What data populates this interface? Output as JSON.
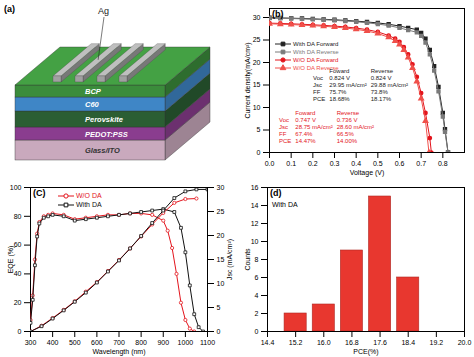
{
  "diagram": {
    "label": "(a)",
    "layers": [
      {
        "name": "Glass/ITO",
        "color": "#c9a9bd"
      },
      {
        "name": "PEDOT:PSS",
        "color": "#8a3d8f"
      },
      {
        "name": "Perovskite",
        "color": "#2b5e33"
      },
      {
        "name": "C60",
        "color": "#3f86c6"
      },
      {
        "name": "BCP",
        "color": "#3b8c3b"
      }
    ],
    "electrode": {
      "name": "Ag",
      "color": "#a0a0a0",
      "fingers": 4
    }
  },
  "chart_data": [
    {
      "type": "line",
      "title": "(b)",
      "x_label": "Voltage (V)",
      "y_label": "Current density(mA/cm²)",
      "xlim": [
        0,
        0.9
      ],
      "xticks": [
        {
          "value": 0,
          "label": "0.0"
        },
        0.1,
        0.2,
        0.3,
        0.4,
        0.5,
        0.6,
        0.7,
        0.8
      ],
      "ylim": [
        0,
        32
      ],
      "yticks": [
        0,
        5,
        10,
        15,
        20,
        25,
        30
      ],
      "legend": "top-left",
      "series": [
        {
          "name": "With DA Forward",
          "color": "#222222",
          "marker": "square",
          "x": [
            0,
            0.05,
            0.1,
            0.15,
            0.2,
            0.25,
            0.3,
            0.35,
            0.4,
            0.45,
            0.5,
            0.55,
            0.6,
            0.64,
            0.68,
            0.7,
            0.72,
            0.74,
            0.76,
            0.78,
            0.8,
            0.81,
            0.824
          ],
          "values": [
            29.95,
            29.9,
            29.85,
            29.78,
            29.7,
            29.6,
            29.5,
            29.35,
            29.2,
            29.0,
            28.8,
            28.5,
            28.1,
            27.7,
            27.3,
            26.6,
            25.3,
            22.8,
            19.2,
            14.6,
            8.8,
            5.2,
            0
          ]
        },
        {
          "name": "With DA Reverse",
          "color": "#7a7a7a",
          "marker": "square",
          "x": [
            0,
            0.05,
            0.1,
            0.15,
            0.2,
            0.25,
            0.3,
            0.35,
            0.4,
            0.45,
            0.5,
            0.55,
            0.6,
            0.64,
            0.68,
            0.7,
            0.72,
            0.74,
            0.76,
            0.78,
            0.8,
            0.81,
            0.824
          ],
          "values": [
            29.88,
            29.83,
            29.77,
            29.7,
            29.6,
            29.5,
            29.38,
            29.22,
            29.05,
            28.82,
            28.55,
            28.2,
            27.7,
            27.2,
            26.7,
            25.9,
            24.4,
            21.8,
            18.2,
            13.6,
            8.0,
            4.6,
            0
          ]
        },
        {
          "name": "W/O DA Forward",
          "color": "#e3141c",
          "marker": "circle",
          "x": [
            0,
            0.05,
            0.1,
            0.15,
            0.2,
            0.25,
            0.3,
            0.35,
            0.4,
            0.45,
            0.5,
            0.55,
            0.58,
            0.6,
            0.62,
            0.64,
            0.66,
            0.68,
            0.7,
            0.72,
            0.74,
            0.747
          ],
          "values": [
            28.75,
            28.68,
            28.6,
            28.5,
            28.38,
            28.25,
            28.1,
            27.9,
            27.65,
            27.3,
            26.8,
            26.0,
            25.3,
            24.6,
            23.4,
            21.8,
            19.6,
            16.8,
            13.2,
            8.8,
            3.2,
            0
          ]
        },
        {
          "name": "W/O DA Reverse",
          "color": "#f0504a",
          "marker": "triangle",
          "x": [
            0,
            0.05,
            0.1,
            0.15,
            0.2,
            0.25,
            0.3,
            0.35,
            0.4,
            0.45,
            0.5,
            0.55,
            0.58,
            0.6,
            0.62,
            0.64,
            0.66,
            0.68,
            0.7,
            0.72,
            0.736
          ],
          "values": [
            28.6,
            28.52,
            28.43,
            28.32,
            28.2,
            28.05,
            27.88,
            27.66,
            27.38,
            27.0,
            26.45,
            25.6,
            24.8,
            24.0,
            22.8,
            21.1,
            18.8,
            15.8,
            12.0,
            7.0,
            0
          ]
        }
      ],
      "annotations": [
        {
          "color": "#222222",
          "header": [
            "",
            "Foward",
            "Reverse"
          ],
          "rows": [
            [
              "Voc",
              "0.824 V",
              "0.824 V"
            ],
            [
              "Jsc",
              "29.95 mA/cm²",
              "29.88 mA/cm²"
            ],
            [
              "FF",
              "75.7%",
              "73.8%"
            ],
            [
              "PCE",
              "18.68%",
              "18.17%"
            ]
          ]
        },
        {
          "color": "#e3141c",
          "header": [
            "",
            "Foward",
            "Reverse"
          ],
          "rows": [
            [
              "Voc",
              "0.747 V",
              "0.736 V"
            ],
            [
              "Jsc",
              "28.75 mA/cm²",
              "28.60 mA/cm²"
            ],
            [
              "FF",
              "67.4%",
              "66.5%"
            ],
            [
              "PCE",
              "14.47%",
              "14.00%"
            ]
          ]
        }
      ]
    },
    {
      "type": "line",
      "title": "(C)",
      "x_label": "Wavelength (nm)",
      "y_label": "EQE (%)",
      "y2_label": "Jsc (mA/cm²)",
      "xlim": [
        300,
        1100
      ],
      "xticks": [
        300,
        400,
        500,
        600,
        700,
        800,
        900,
        1000,
        1100
      ],
      "ylim": [
        0,
        100
      ],
      "yticks": [
        0,
        20,
        40,
        60,
        80,
        100
      ],
      "y2lim": [
        0,
        30
      ],
      "y2ticks": [
        0,
        5,
        10,
        15,
        20,
        25,
        30
      ],
      "legend": "top-left",
      "series": [
        {
          "name": "W/O DA",
          "color": "#e3141c",
          "marker": "circle",
          "x": [
            300,
            310,
            320,
            330,
            340,
            360,
            380,
            400,
            450,
            500,
            550,
            600,
            650,
            700,
            750,
            800,
            850,
            900,
            920,
            940,
            960,
            980,
            1000,
            1020,
            1040
          ],
          "values": [
            8,
            25,
            50,
            68,
            76,
            80,
            81,
            82,
            81,
            78,
            79,
            80,
            81,
            81,
            82,
            82,
            81,
            77,
            70,
            58,
            40,
            20,
            8,
            2,
            0
          ]
        },
        {
          "name": "With DA",
          "color": "#111111",
          "marker": "square",
          "x": [
            300,
            310,
            320,
            330,
            340,
            360,
            380,
            400,
            450,
            500,
            550,
            600,
            650,
            700,
            750,
            800,
            850,
            900,
            950,
            980,
            1000,
            1020,
            1040,
            1060,
            1080
          ],
          "values": [
            6,
            22,
            46,
            66,
            75,
            79,
            80,
            81,
            80,
            77,
            78,
            79,
            80,
            81,
            82,
            83,
            84,
            85,
            83,
            72,
            55,
            32,
            12,
            3,
            0
          ]
        },
        {
          "name": "W/O DA",
          "color": "#e3141c",
          "marker": "circle",
          "axis": "y2",
          "x": [
            300,
            350,
            400,
            450,
            500,
            550,
            600,
            650,
            700,
            750,
            800,
            850,
            900,
            950,
            1000,
            1050
          ],
          "values": [
            0,
            1.2,
            2.8,
            4.5,
            6.3,
            8.3,
            10.3,
            12.6,
            14.9,
            17.3,
            19.8,
            22.3,
            24.7,
            26.8,
            27.6,
            27.7
          ]
        },
        {
          "name": "With DA",
          "color": "#111111",
          "marker": "square",
          "axis": "y2",
          "x": [
            300,
            350,
            400,
            450,
            500,
            550,
            600,
            650,
            700,
            750,
            800,
            850,
            900,
            950,
            1000,
            1050,
            1100
          ],
          "values": [
            0,
            1.1,
            2.7,
            4.4,
            6.2,
            8.1,
            10.2,
            12.5,
            14.8,
            17.3,
            19.9,
            22.6,
            25.2,
            27.8,
            29.2,
            29.6,
            29.6
          ]
        }
      ]
    },
    {
      "type": "histogram",
      "title": "(d)",
      "annotations": [
        "With DA"
      ],
      "x_label": "PCE(%)",
      "y_label": "Counts",
      "bins": [
        14.8,
        15.6,
        16.4,
        17.2,
        18.0,
        18.8
      ],
      "counts": [
        2,
        3,
        9,
        15,
        6
      ],
      "color": "#e8372f",
      "xlim": [
        14.4,
        20.0
      ],
      "xticks": [
        14.4,
        15.2,
        {
          "value": 16,
          "label": "16.0"
        },
        16.8,
        17.6,
        18.4,
        19.2,
        {
          "value": 20,
          "label": "20.0"
        }
      ],
      "ylim": [
        0,
        16
      ],
      "yticks": [
        0,
        2,
        4,
        6,
        8,
        10,
        12,
        14,
        16
      ]
    }
  ]
}
